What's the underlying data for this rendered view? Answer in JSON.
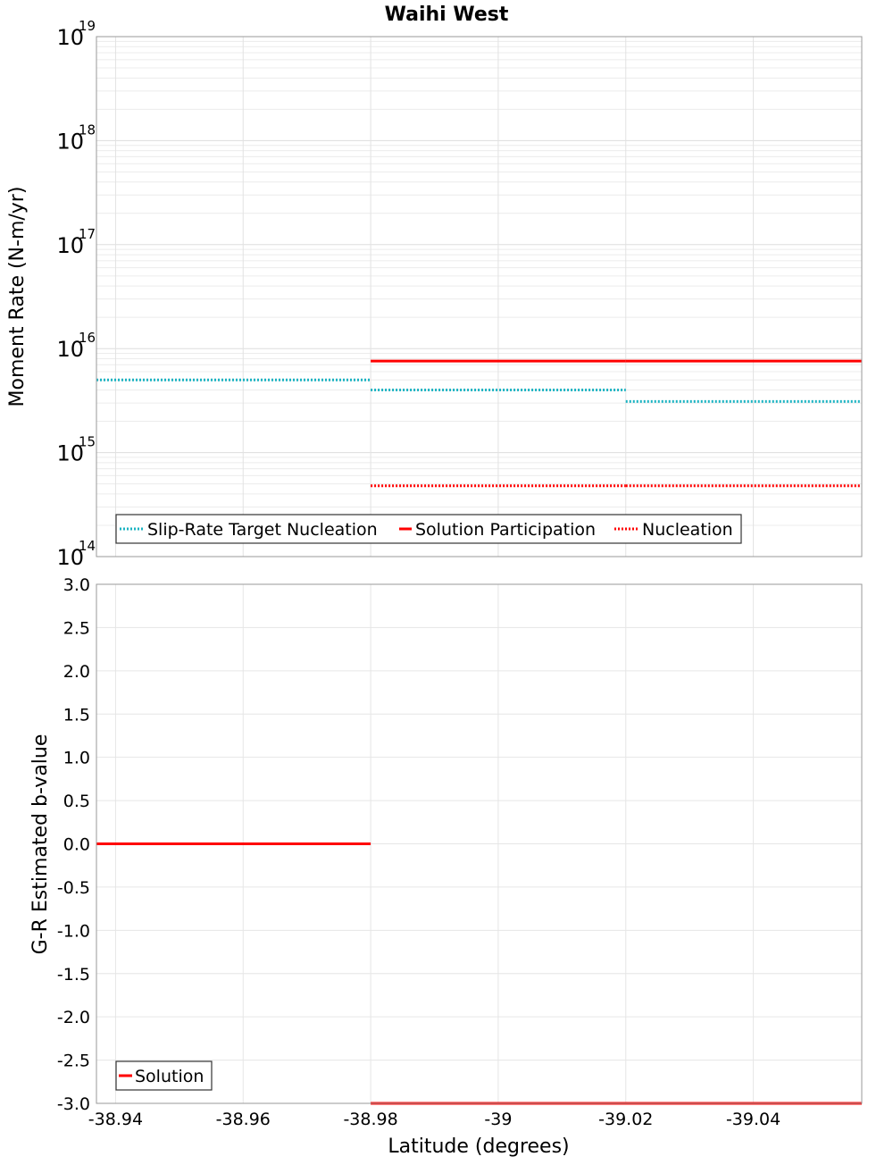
{
  "title": "Waihi West",
  "chart_data": [
    {
      "type": "line",
      "panel": "top",
      "title": "Waihi West",
      "ylabel": "Moment Rate (N-m/yr)",
      "xlabel": "",
      "yscale": "log",
      "ylim": [
        100000000000000.0,
        1e+19
      ],
      "xlim": [
        -38.937,
        -39.057
      ],
      "y_tick_labels": [
        {
          "base": "10",
          "exp": "14",
          "value": 100000000000000.0
        },
        {
          "base": "10",
          "exp": "15",
          "value": 1000000000000000.0
        },
        {
          "base": "10",
          "exp": "16",
          "value": 1e+16
        },
        {
          "base": "10",
          "exp": "17",
          "value": 1e+17
        },
        {
          "base": "10",
          "exp": "18",
          "value": 1e+18
        },
        {
          "base": "10",
          "exp": "19",
          "value": 1e+19
        }
      ],
      "legend": {
        "placement": "bottom-left",
        "entries": [
          "Slip-Rate Target Nucleation",
          "Solution Participation",
          "Nucleation"
        ]
      },
      "series": [
        {
          "name": "Slip-Rate Target Nucleation",
          "color": "#1ab3c2",
          "style": "dotted",
          "segments": [
            {
              "x": [
                -38.937,
                -38.98
              ],
              "y": 5000000000000000.0
            },
            {
              "x": [
                -38.98,
                -39.02
              ],
              "y": 4000000000000000.0
            },
            {
              "x": [
                -39.02,
                -39.057
              ],
              "y": 3100000000000000.0
            }
          ]
        },
        {
          "name": "Solution Participation",
          "color": "#ff0000",
          "style": "solid",
          "segments": [
            {
              "x": [
                -38.98,
                -39.02
              ],
              "y": 7600000000000000.0
            },
            {
              "x": [
                -39.02,
                -39.057
              ],
              "y": 7600000000000000.0
            }
          ]
        },
        {
          "name": "Nucleation",
          "color": "#ff0000",
          "style": "dotted",
          "segments": [
            {
              "x": [
                -38.98,
                -39.02
              ],
              "y": 480000000000000.0
            },
            {
              "x": [
                -39.02,
                -39.057
              ],
              "y": 480000000000000.0
            }
          ]
        }
      ]
    },
    {
      "type": "line",
      "panel": "bottom",
      "ylabel": "G-R Estimated b-value",
      "xlabel": "Latitude (degrees)",
      "ylim": [
        -3.0,
        3.0
      ],
      "xlim": [
        -38.937,
        -39.057
      ],
      "y_ticks": [
        "3.0",
        "2.5",
        "2.0",
        "1.5",
        "1.0",
        "0.5",
        "0.0",
        "-0.5",
        "-1.0",
        "-1.5",
        "-2.0",
        "-2.5",
        "-3.0"
      ],
      "x_ticks": [
        "-38.94",
        "-38.96",
        "-38.98",
        "-39",
        "-39.02",
        "-39.04"
      ],
      "legend": {
        "placement": "bottom-left",
        "entries": [
          "Solution"
        ]
      },
      "series": [
        {
          "name": "Solution",
          "color": "#ff0000",
          "style": "solid",
          "segments": [
            {
              "x": [
                -38.937,
                -38.98
              ],
              "y": 0.0
            },
            {
              "x": [
                -38.98,
                -39.057
              ],
              "y": -3.0
            }
          ]
        }
      ]
    }
  ]
}
